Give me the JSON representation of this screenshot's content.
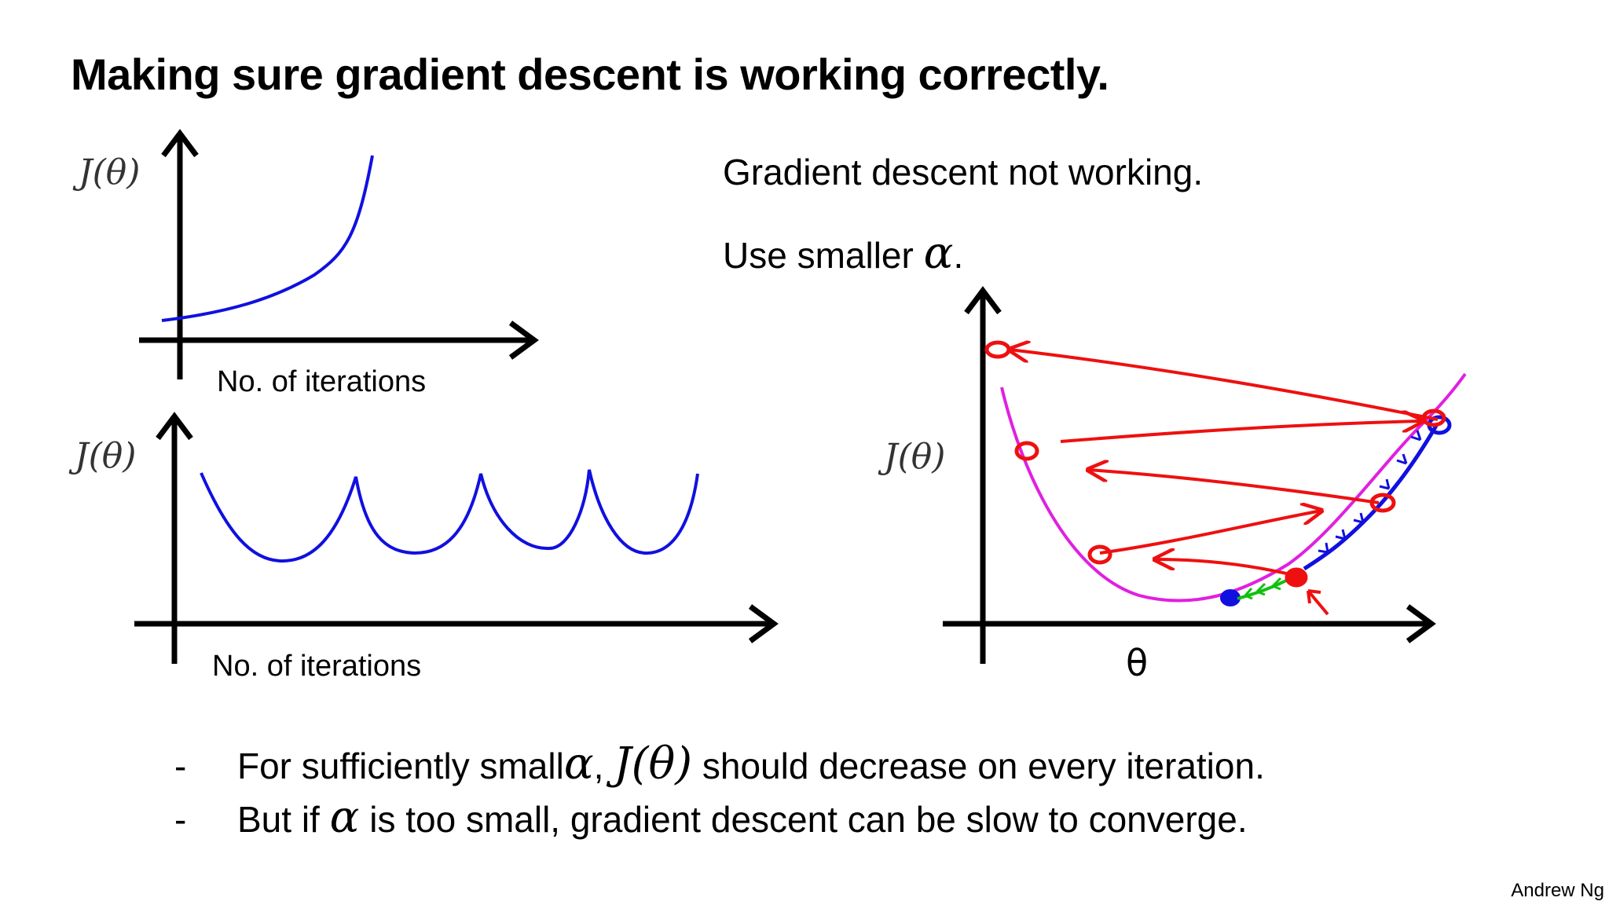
{
  "title": "Making sure gradient descent is working correctly.",
  "notes": {
    "line1": "Gradient descent not working.",
    "line2_prefix": "Use smaller ",
    "line2_symbol": "α",
    "line2_suffix": "."
  },
  "plots": {
    "top": {
      "ylabel": "J(θ)",
      "xlabel": "No. of iterations"
    },
    "middle": {
      "ylabel": "J(θ)",
      "xlabel": "No. of iterations"
    },
    "right": {
      "ylabel": "J(θ)",
      "xlabel": "θ"
    }
  },
  "bullets": [
    {
      "dash": "-",
      "part1": "For sufficiently small ",
      "symbol1": "α",
      "part2": ", ",
      "symbol2": "J(θ)",
      "part3": " should decrease on every iteration."
    },
    {
      "dash": "-",
      "part1": "But if ",
      "symbol1": "α",
      "part2": " is too small, gradient descent can be slow to converge."
    }
  ],
  "credit": "Andrew Ng",
  "colors": {
    "curve_blue": "#1010e0",
    "cost_curve": "#e020e0",
    "overshoot": "#ee1010",
    "small_step": "#10c010",
    "axes": "#000000"
  },
  "icons": {
    "axis_arrow": "arrow-head-icon"
  }
}
